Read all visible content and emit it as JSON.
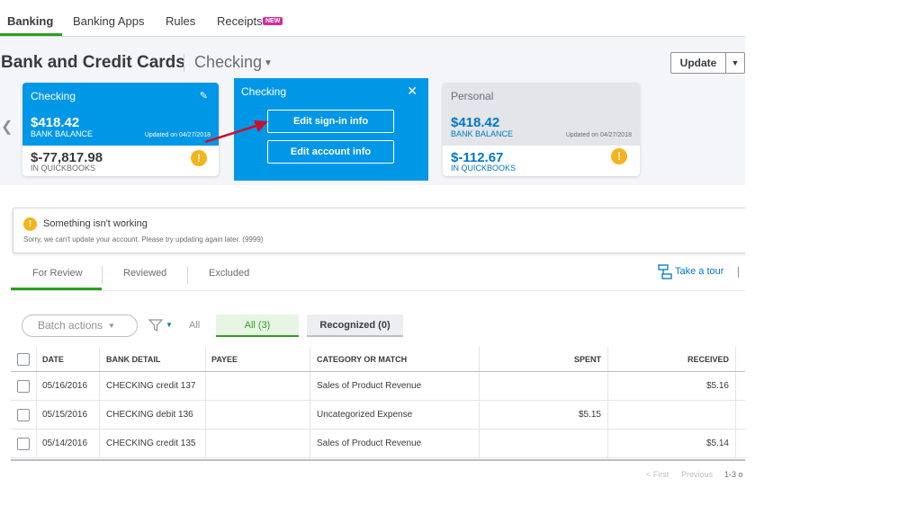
{
  "nav": {
    "tabs": [
      {
        "label": "Banking"
      },
      {
        "label": "Banking Apps"
      },
      {
        "label": "Rules"
      },
      {
        "label": "Receipts"
      }
    ],
    "new_badge": "NEW"
  },
  "header": {
    "title": "Bank and Credit Cards",
    "account": "Checking",
    "update_label": "Update"
  },
  "cards": [
    {
      "name": "Checking",
      "bank_balance": "$418.42",
      "bank_balance_label": "BANK BALANCE",
      "updated": "Updated on 04/27/2018",
      "qb_balance": "$-77,817.98",
      "qb_label": "IN QUICKBOOKS"
    },
    {
      "name": "Personal",
      "bank_balance": "$418.42",
      "bank_balance_label": "BANK BALANCE",
      "updated": "Updated on 04/27/2018",
      "qb_balance": "$-112.67",
      "qb_label": "IN QUICKBOOKS"
    }
  ],
  "popup": {
    "title": "Checking",
    "edit_signin": "Edit sign-in info",
    "edit_account": "Edit account info"
  },
  "alert": {
    "title": "Something isn't working",
    "message": "Sorry, we can't update your account. Please try updating again later. (9999)"
  },
  "review_tabs": [
    "For Review",
    "Reviewed",
    "Excluded"
  ],
  "take_tour": "Take a tour",
  "toolbar": {
    "batch_actions": "Batch actions",
    "all_label": "All",
    "pill_all": "All (3)",
    "pill_recognized": "Recognized (0)"
  },
  "table": {
    "columns": [
      "DATE",
      "BANK DETAIL",
      "PAYEE",
      "CATEGORY OR MATCH",
      "SPENT",
      "RECEIVED"
    ],
    "rows": [
      {
        "date": "05/16/2016",
        "detail": "CHECKING credit 137",
        "payee": "",
        "category": "Sales of Product Revenue",
        "spent": "",
        "received": "$5.16"
      },
      {
        "date": "05/15/2016",
        "detail": "CHECKING debit 136",
        "payee": "",
        "category": "Uncategorized Expense",
        "spent": "$5.15",
        "received": ""
      },
      {
        "date": "05/14/2016",
        "detail": "CHECKING credit 135",
        "payee": "",
        "category": "Sales of Product Revenue",
        "spent": "",
        "received": "$5.14"
      }
    ]
  },
  "pager": {
    "first": "< First",
    "previous": "Previous",
    "count": "1-3 o"
  },
  "colors": {
    "brand_green": "#2ca01c",
    "card_blue": "#0097e6",
    "link_blue": "#0077c5",
    "warning": "#f3b41d",
    "new_badge": "#d52b98",
    "arrow": "#c8102e"
  }
}
